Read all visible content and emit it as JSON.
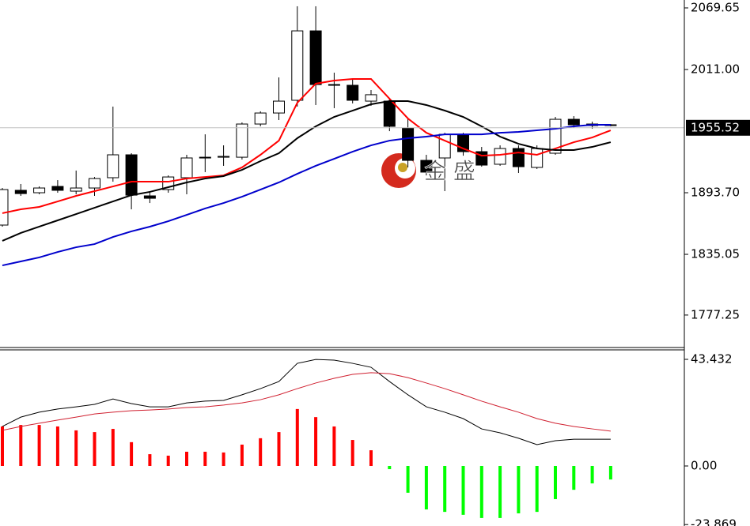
{
  "chart_data": [
    {
      "type": "candlestick",
      "open": [
        1862.9,
        1896.0,
        1893.7,
        1899.7,
        1895.2,
        1898.2,
        1908.0,
        1929.8,
        1890.7,
        1896.7,
        1908.0,
        1926.8,
        1927.5,
        1927.5,
        1959.1,
        1969.6,
        1981.7,
        2047.8,
        1996.7,
        1996.0,
        1980.9,
        1980.9,
        1955.4,
        1924.5,
        1926.8,
        1949.3,
        1932.8,
        1920.8,
        1935.8,
        1917.8,
        1931.3,
        1963.6,
        1957.6,
        1957.6
      ],
      "high": [
        1898.2,
        1902.0,
        1899.7,
        1905.7,
        1914.8,
        1908.7,
        1975.7,
        1931.3,
        1895.2,
        1910.2,
        1929.8,
        1949.3,
        1938.8,
        1960.6,
        1971.2,
        2003.5,
        2071.2,
        2071.2,
        2008.0,
        2002.0,
        1991.5,
        1983.9,
        1964.4,
        1929.8,
        1950.8,
        1950.8,
        1937.3,
        1938.8,
        1938.8,
        1938.8,
        1965.9,
        1966.6,
        1961.4,
        1959.1
      ],
      "low": [
        1861.4,
        1890.7,
        1892.2,
        1893.7,
        1892.2,
        1890.7,
        1904.2,
        1877.9,
        1883.9,
        1893.7,
        1892.2,
        1913.3,
        1919.3,
        1925.3,
        1956.9,
        1962.9,
        1975.7,
        1977.2,
        1974.2,
        1978.7,
        1976.4,
        1952.3,
        1917.8,
        1910.2,
        1895.2,
        1929.0,
        1918.5,
        1919.3,
        1912.5,
        1916.3,
        1929.8,
        1955.4,
        1954.6,
        1956.9
      ],
      "close": [
        1896.7,
        1892.9,
        1898.2,
        1896.0,
        1898.2,
        1907.2,
        1929.8,
        1891.4,
        1888.4,
        1908.7,
        1926.8,
        1927.5,
        1928.3,
        1959.1,
        1969.6,
        1980.9,
        2047.8,
        1996.7,
        1996.0,
        1981.7,
        1987.0,
        1956.9,
        1924.5,
        1913.3,
        1949.3,
        1932.8,
        1920.0,
        1935.8,
        1918.5,
        1935.8,
        1963.6,
        1958.4,
        1959.1,
        1958.4
      ],
      "up_color": "#ffffff",
      "down_color": "#000000",
      "lines": [
        {
          "color": "#ff0000",
          "values": [
            1874.2,
            1877.9,
            1880.2,
            1885.4,
            1890.7,
            1895.2,
            1899.7,
            1904.2,
            1904.2,
            1904.2,
            1907.2,
            1908.7,
            1910.2,
            1917.8,
            1929.8,
            1943.3,
            1979.4,
            1997.5,
            2000.5,
            2002.0,
            2002.0,
            1983.2,
            1964.4,
            1950.8,
            1943.3,
            1935.8,
            1929.0,
            1929.8,
            1932.0,
            1929.8,
            1935.8,
            1941.8,
            1946.3,
            1953.1
          ]
        },
        {
          "color": "#000000",
          "values": [
            1847.9,
            1855.4,
            1861.4,
            1867.4,
            1873.4,
            1879.4,
            1885.4,
            1891.4,
            1894.5,
            1899.0,
            1903.5,
            1907.2,
            1909.5,
            1915.5,
            1923.8,
            1931.3,
            1945.6,
            1956.9,
            1965.9,
            1971.9,
            1977.9,
            1980.9,
            1980.9,
            1977.2,
            1971.9,
            1965.9,
            1956.9,
            1947.1,
            1940.3,
            1935.8,
            1934.3,
            1934.3,
            1937.3,
            1941.8
          ]
        },
        {
          "color": "#0000cc",
          "values": [
            1824.5,
            1828.3,
            1832.1,
            1837.3,
            1841.8,
            1844.8,
            1851.6,
            1856.9,
            1861.4,
            1866.6,
            1872.6,
            1878.7,
            1883.9,
            1889.9,
            1896.7,
            1903.5,
            1911.7,
            1919.3,
            1926.0,
            1932.8,
            1938.8,
            1943.3,
            1945.6,
            1947.1,
            1949.3,
            1949.3,
            1949.3,
            1950.8,
            1951.6,
            1953.1,
            1954.6,
            1956.9,
            1958.4,
            1958.4
          ]
        }
      ],
      "last_price": 1955.52,
      "ylim": [
        1746.35,
        2077.17
      ],
      "yticks": [
        2069.65,
        {
          "value": 2011.0,
          "label": "2011.00"
        },
        {
          "value": 1893.7,
          "label": "1893.70"
        },
        1835.05,
        1777.25
      ],
      "watermark": "金 盛"
    },
    {
      "type": "macd",
      "values": [
        16.1,
        16.7,
        16.7,
        16.1,
        14.5,
        13.8,
        15.1,
        9.7,
        4.8,
        4.2,
        5.8,
        5.8,
        5.5,
        8.7,
        11.3,
        13.8,
        23.2,
        19.9,
        16.1,
        10.6,
        6.4,
        -1.3,
        -10.9,
        -17.7,
        -18.7,
        -19.9,
        -21.2,
        -21.2,
        -19.3,
        -18.7,
        -13.5,
        -9.7,
        -7.1,
        -5.5
      ],
      "color": "#ff0000",
      "negative_color": "#00ff00",
      "lines": [
        {
          "color": "#000000",
          "values": [
            16.1,
            19.9,
            21.9,
            23.2,
            24.1,
            25.1,
            27.3,
            25.4,
            24.1,
            24.1,
            25.7,
            26.4,
            26.7,
            29.0,
            31.5,
            34.4,
            41.8,
            43.4,
            43.1,
            41.8,
            40.2,
            34.4,
            29.0,
            24.1,
            21.9,
            19.3,
            15.1,
            13.5,
            11.3,
            8.7,
            10.3,
            10.9,
            10.9,
            10.9
          ]
        },
        {
          "color": "#d02030",
          "values": [
            14.5,
            16.1,
            17.4,
            18.7,
            19.9,
            21.2,
            21.9,
            22.5,
            22.8,
            23.2,
            23.8,
            24.1,
            24.8,
            25.7,
            27.0,
            29.0,
            31.5,
            33.8,
            35.7,
            37.3,
            38.0,
            37.6,
            36.0,
            33.8,
            31.5,
            29.0,
            26.4,
            24.1,
            21.9,
            19.3,
            17.4,
            16.1,
            15.1,
            14.2
          ]
        }
      ],
      "ylim": [
        -24.45,
        47.29
      ],
      "yticks": [
        43.432,
        {
          "value": 0,
          "label": "0.00"
        },
        -23.869
      ]
    }
  ]
}
